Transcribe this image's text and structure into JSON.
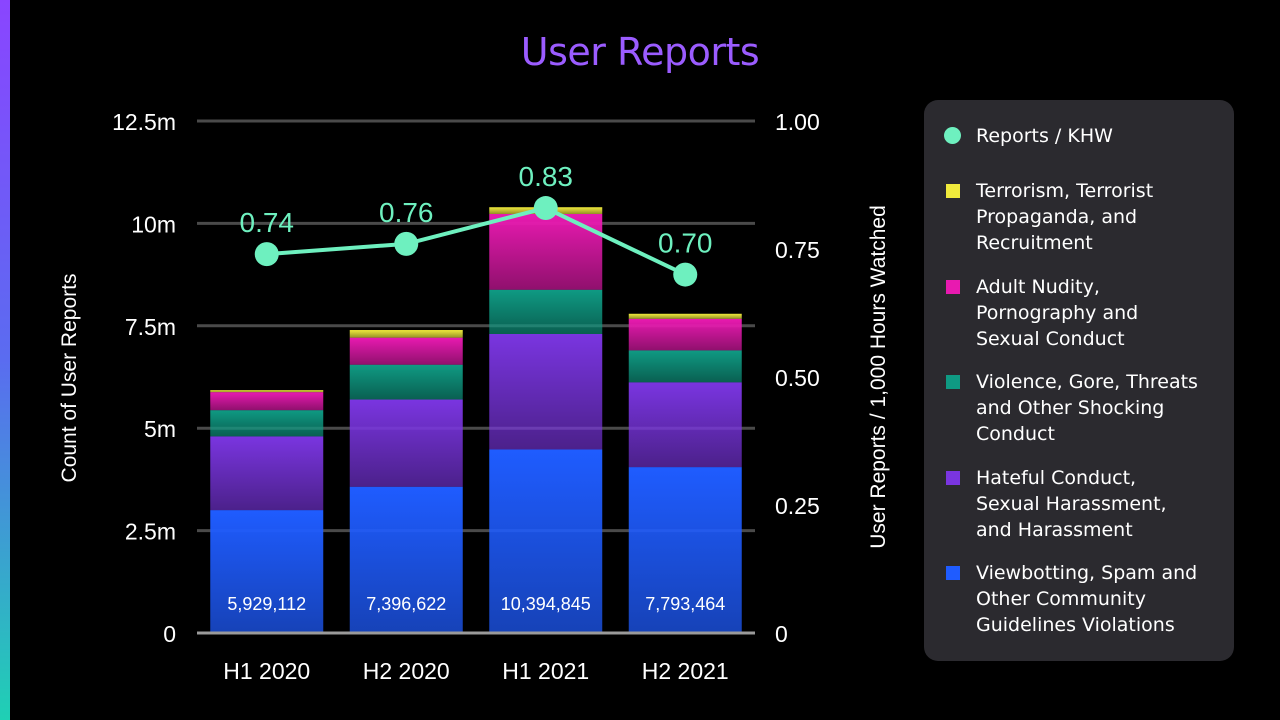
{
  "title": "User Reports",
  "chart_data": {
    "type": "bar",
    "stacked": true,
    "title": "User Reports",
    "categories": [
      "H1 2020",
      "H2 2020",
      "H1 2021",
      "H2 2021"
    ],
    "ylabel": "Count of User Reports",
    "y2label": "User Reports / 1,000 Hours Watched",
    "ylim": [
      0,
      12500000
    ],
    "y2lim": [
      0,
      1.0
    ],
    "yticks": [
      {
        "value": 0,
        "label": "0"
      },
      {
        "value": 2500000,
        "label": "2.5m"
      },
      {
        "value": 5000000,
        "label": "5m"
      },
      {
        "value": 7500000,
        "label": "7.5m"
      },
      {
        "value": 10000000,
        "label": "10m"
      },
      {
        "value": 12500000,
        "label": "12.5m"
      }
    ],
    "y2ticks": [
      {
        "value": 0,
        "label": "0"
      },
      {
        "value": 0.25,
        "label": "0.25"
      },
      {
        "value": 0.5,
        "label": "0.50"
      },
      {
        "value": 0.75,
        "label": "0.75"
      },
      {
        "value": 1.0,
        "label": "1.00"
      }
    ],
    "grid": true,
    "legend_position": "right",
    "series": [
      {
        "name": "Viewbotting, Spam and Other Community Guidelines Violations",
        "color": "#1f5cff",
        "values": [
          3000000,
          3570000,
          4480000,
          4050000
        ]
      },
      {
        "name": "Hateful Conduct, Sexual Harassment, and Harassment",
        "color": "#7a35e0",
        "values": [
          1800000,
          2130000,
          2820000,
          2070000
        ]
      },
      {
        "name": "Violence, Gore, Threats and Other Shocking Conduct",
        "color": "#0f9a83",
        "values": [
          640000,
          850000,
          1080000,
          780000
        ]
      },
      {
        "name": "Adult Nudity, Pornography and Sexual Conduct",
        "color": "#e81ab0",
        "values": [
          440000,
          660000,
          1850000,
          770000
        ]
      },
      {
        "name": "Terrorism, Terrorist Propaganda, and Recruitment",
        "color": "#f0ea3c",
        "values": [
          49112,
          186622,
          164845,
          123464
        ]
      }
    ],
    "totals": [
      5929112,
      7396622,
      10394845,
      7793464
    ],
    "total_labels": [
      "5,929,112",
      "7,396,622",
      "10,394,845",
      "7,793,464"
    ],
    "line_series": {
      "name": "Reports / KHW",
      "axis": "right",
      "color": "#6ef0bf",
      "values": [
        0.74,
        0.76,
        0.83,
        0.7
      ],
      "labels": [
        "0.74",
        "0.76",
        "0.83",
        "0.70"
      ]
    }
  },
  "legend": [
    {
      "label": "Reports / KHW",
      "color": "#6ef0bf",
      "shape": "circle"
    },
    {
      "label": "Terrorism, Terrorist\nPropaganda, and\nRecruitment",
      "color": "#f0ea3c",
      "shape": "square"
    },
    {
      "label": "Adult Nudity,\nPornography and\nSexual Conduct",
      "color": "#e81ab0",
      "shape": "square"
    },
    {
      "label": "Violence, Gore, Threats\nand Other Shocking\nConduct",
      "color": "#0f9a83",
      "shape": "square"
    },
    {
      "label": "Hateful Conduct,\nSexual Harassment,\nand Harassment",
      "color": "#7a35e0",
      "shape": "square"
    },
    {
      "label": "Viewbotting, Spam and\nOther Community\nGuidelines Violations",
      "color": "#1f5cff",
      "shape": "square"
    }
  ]
}
